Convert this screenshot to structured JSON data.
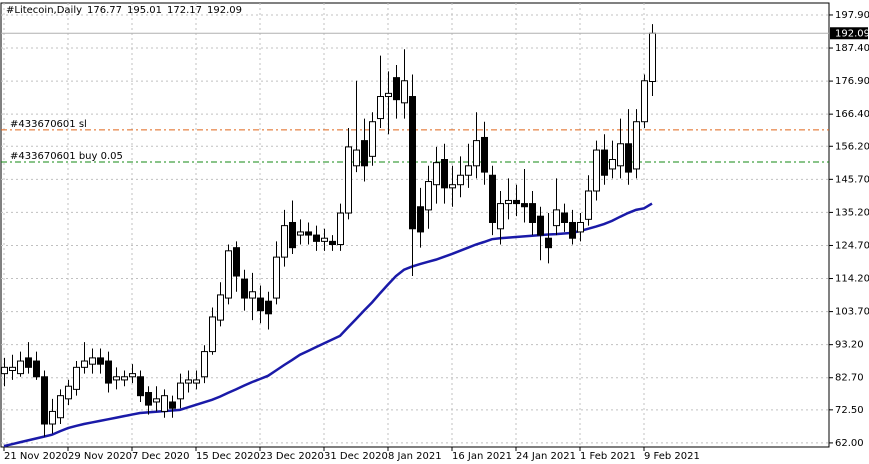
{
  "chart_data": {
    "type": "candlestick",
    "title": "#Litecoin,Daily",
    "categories": [
      "21 Nov 2020",
      null,
      null,
      null,
      null,
      null,
      null,
      null,
      "29 Nov 2020",
      null,
      null,
      null,
      null,
      null,
      null,
      null,
      "7 Dec 2020",
      null,
      null,
      null,
      null,
      null,
      null,
      null,
      "15 Dec 2020",
      null,
      null,
      null,
      null,
      null,
      null,
      null,
      "23 Dec 2020",
      null,
      null,
      null,
      null,
      null,
      null,
      null,
      "31 Dec 2020",
      null,
      null,
      null,
      null,
      null,
      null,
      null,
      "8 Jan 2021",
      null,
      null,
      null,
      null,
      null,
      null,
      null,
      "16 Jan 2021",
      null,
      null,
      null,
      null,
      null,
      null,
      null,
      "24 Jan 2021",
      null,
      null,
      null,
      null,
      null,
      null,
      null,
      "1 Feb 2021",
      null,
      null,
      null,
      null,
      null,
      null,
      null,
      "9 Feb 2021",
      null
    ],
    "open": [
      84,
      85,
      84,
      89,
      88,
      83,
      68,
      70,
      76,
      79,
      86,
      87,
      89,
      88,
      82,
      82,
      83,
      83,
      78,
      75,
      72,
      75,
      76,
      81,
      81,
      83,
      91,
      101,
      108,
      124,
      114,
      108,
      108,
      107,
      108,
      121,
      132,
      128,
      129,
      128,
      126,
      126,
      125,
      135,
      150,
      158,
      153,
      165,
      172,
      178,
      170,
      172,
      137,
      136,
      144,
      152,
      143,
      144,
      147,
      150,
      159,
      147,
      130,
      138,
      139,
      138,
      138,
      134,
      127,
      131,
      135,
      132,
      129,
      133,
      142,
      155,
      149,
      150,
      157,
      149,
      164,
      176.77
    ],
    "high": [
      89,
      90,
      91,
      94,
      91,
      85,
      76,
      79,
      82,
      88,
      94,
      92,
      92,
      91,
      86,
      85,
      87,
      85,
      80,
      80,
      79,
      77,
      84,
      85,
      85,
      93,
      105,
      113,
      125,
      126,
      117,
      116,
      112,
      110,
      126,
      136,
      139,
      133,
      132,
      131,
      130,
      128,
      138,
      162,
      177,
      165,
      167,
      185,
      180,
      182,
      187,
      179,
      143,
      150,
      156,
      157,
      150,
      153,
      157,
      167,
      164,
      150,
      142,
      146,
      144,
      149,
      142,
      137,
      135,
      146,
      138,
      136,
      135,
      147,
      158,
      160,
      158,
      165,
      168,
      168,
      179,
      195.01
    ],
    "low": [
      80,
      82,
      83,
      84,
      82,
      64,
      65,
      68,
      74,
      77,
      84,
      84,
      84,
      78,
      79,
      80,
      81,
      75,
      71,
      72,
      70,
      70,
      73,
      78,
      79,
      81,
      90,
      99,
      106,
      110,
      104,
      101,
      100,
      98,
      106,
      118,
      122,
      125,
      125,
      123,
      123,
      123,
      123,
      133,
      148,
      145,
      150,
      162,
      160,
      165,
      165,
      115,
      124,
      130,
      138,
      138,
      137,
      140,
      143,
      146,
      144,
      128,
      125,
      133,
      134,
      132,
      128,
      120,
      119,
      128,
      129,
      125,
      126,
      131,
      139,
      144,
      146,
      146,
      144,
      146,
      162,
      172.17
    ],
    "close": [
      86,
      86,
      88,
      86,
      83,
      68,
      72,
      77,
      80,
      86,
      88,
      89,
      87,
      81,
      83,
      83,
      84,
      77,
      74,
      76,
      77,
      73,
      81,
      82,
      82,
      91,
      102,
      109,
      123,
      115,
      108,
      110,
      104,
      103,
      121,
      131,
      124,
      129,
      128,
      126,
      127,
      125,
      135,
      156,
      155,
      150,
      164,
      172,
      173,
      171,
      177,
      130,
      129,
      145,
      151,
      143,
      144,
      147,
      150,
      158,
      148,
      132,
      138,
      139,
      138,
      137,
      132,
      128,
      124,
      136,
      132,
      127,
      132,
      142,
      155,
      147,
      152,
      157,
      148,
      164,
      177,
      192.09
    ],
    "up_color": "#ffffff",
    "down_color": "#000000",
    "line": {
      "color": "#1a1aa8",
      "values": [
        61,
        61.6,
        62.2,
        62.8,
        63.4,
        64,
        64.6,
        65.7,
        66.7,
        67.4,
        68,
        68.5,
        69,
        69.5,
        70,
        70.5,
        71,
        71.5,
        71.7,
        71.9,
        72.1,
        72.3,
        72.5,
        73.3,
        74.1,
        74.9,
        75.7,
        76.7,
        77.9,
        79,
        80.2,
        81.3,
        82.3,
        83.3,
        85,
        86.7,
        88.3,
        90,
        91.2,
        92.4,
        93.6,
        94.8,
        96,
        98.7,
        101.3,
        104,
        106.6,
        109.5,
        112.3,
        115,
        117,
        118,
        118.8,
        119.5,
        120.2,
        121.1,
        122,
        123,
        124,
        125,
        125.8,
        126.7,
        127,
        127.2,
        127.4,
        127.6,
        127.8,
        128,
        128.2,
        128.3,
        128.5,
        128.7,
        129.3,
        130,
        130.7,
        131.5,
        132.5,
        133.8,
        135,
        136,
        136.5,
        138
      ]
    },
    "levels": [
      {
        "label": "#433670601 sl",
        "value": 161.4,
        "color": "#e0661a"
      },
      {
        "label": "#433670601 buy 0.05",
        "value": 151.2,
        "color": "#138a13"
      }
    ],
    "ylim": [
      60.7,
      201.7
    ],
    "yticks": [
      {
        "value": 197.9,
        "label": "197.90"
      },
      {
        "value": 187.4,
        "label": "187.40"
      },
      {
        "value": 176.9,
        "label": "176.90"
      },
      {
        "value": 166.4,
        "label": "166.40"
      },
      {
        "value": 156.2,
        "label": "156.20"
      },
      {
        "value": 145.7,
        "label": "145.70"
      },
      {
        "value": 135.2,
        "label": "135.20"
      },
      {
        "value": 124.7,
        "label": "124.70"
      },
      {
        "value": 114.2,
        "label": "114.20"
      },
      {
        "value": 103.7,
        "label": "103.70"
      },
      {
        "value": 93.2,
        "label": "93.20"
      },
      {
        "value": 82.7,
        "label": "82.70"
      },
      {
        "value": 72.5,
        "label": "72.50"
      },
      {
        "value": 62,
        "label": "62.00"
      }
    ],
    "grid": true
  }
}
